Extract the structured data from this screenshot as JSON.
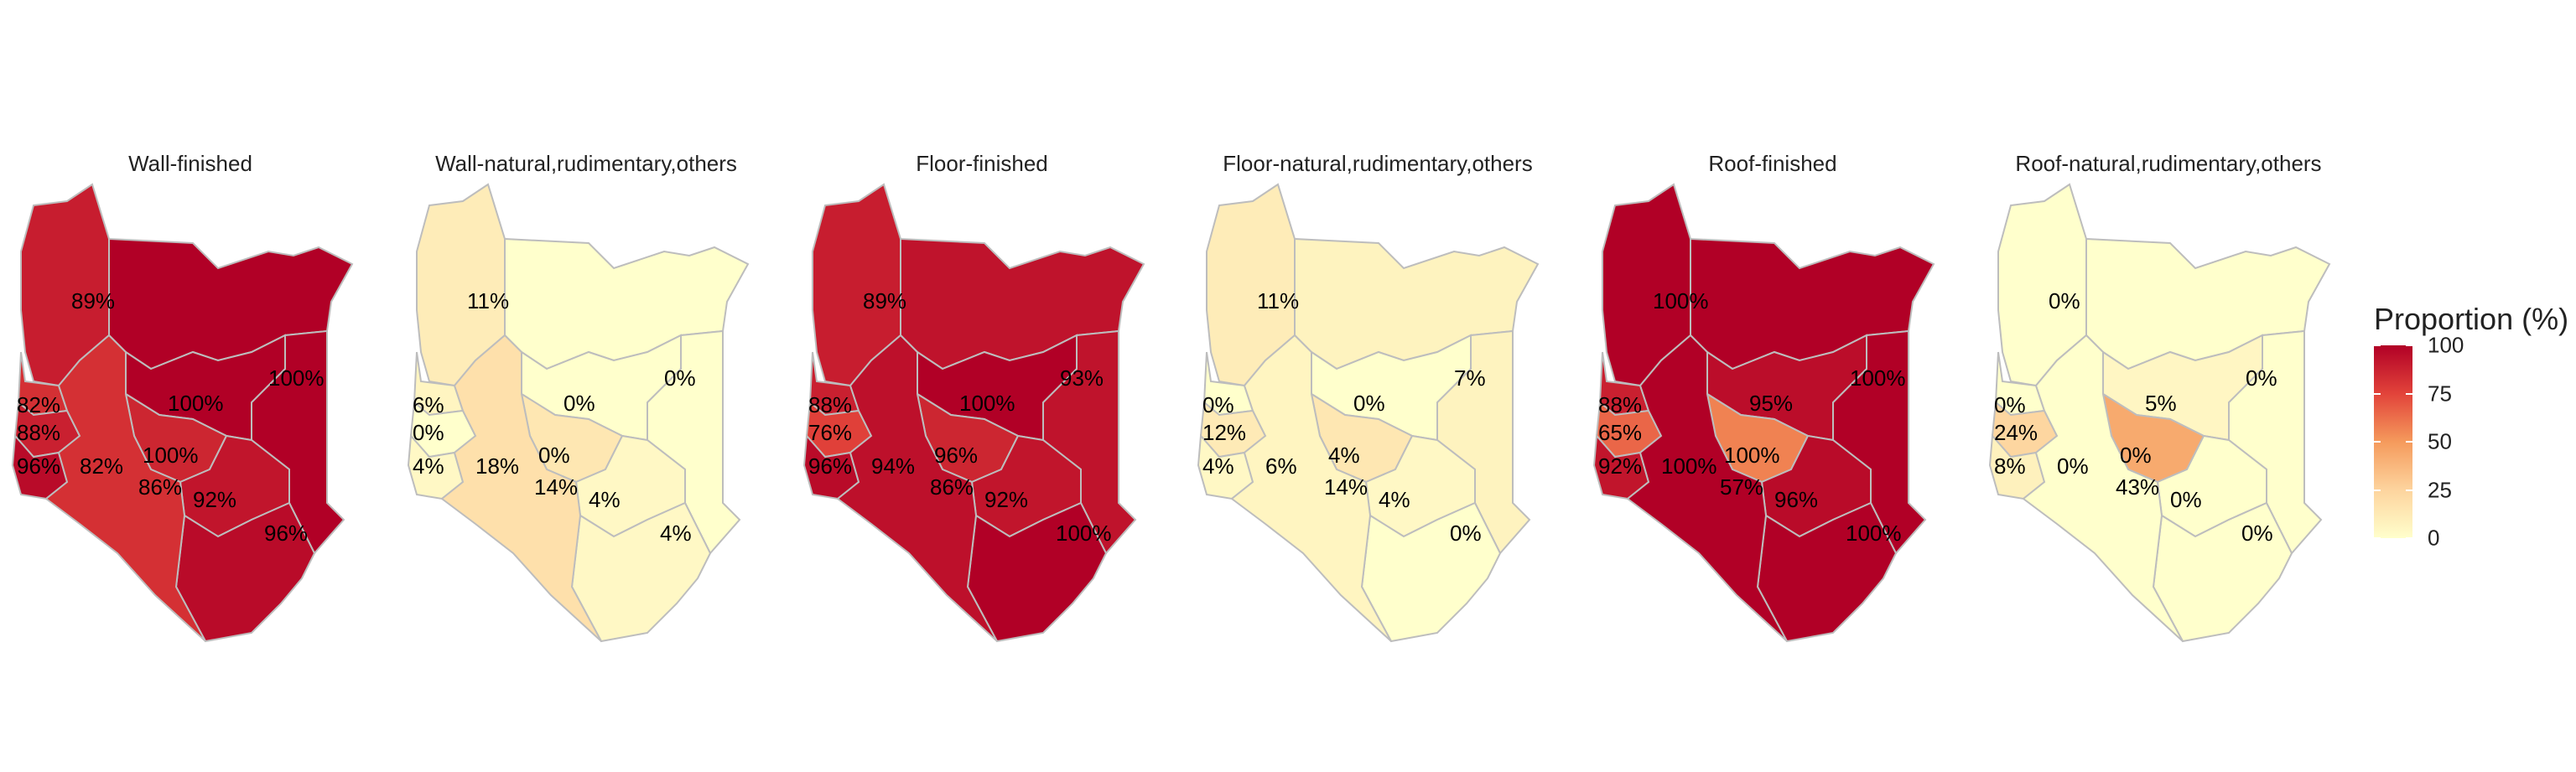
{
  "legend": {
    "title": "Proportion (%)",
    "ticks": [
      "100",
      "75",
      "50",
      "25",
      "0"
    ],
    "tick_values": [
      100,
      75,
      50,
      25,
      0
    ],
    "range": [
      0,
      100
    ],
    "colors": [
      "#ffffcc",
      "#fdd49e",
      "#f59a5c",
      "#e2433a",
      "#b10026"
    ]
  },
  "panels": [
    {
      "title": "Wall-finished",
      "regions": {
        "north_west": 89,
        "north_east": 100,
        "east": 100,
        "central_north": 100,
        "central": 86,
        "south_central": 92,
        "coast": 96,
        "lake_north": 82,
        "lake_mid": 88,
        "lake_south": 96,
        "rift_south": 82
      },
      "labels": [
        {
          "text": "89%",
          "pos": "north_west"
        },
        {
          "text": "100%",
          "pos": "east"
        },
        {
          "text": "82%",
          "pos": "lake_north"
        },
        {
          "text": "100%",
          "pos": "central_north"
        },
        {
          "text": "88%",
          "pos": "lake_mid"
        },
        {
          "text": "96%",
          "pos": "lake_south"
        },
        {
          "text": "82%",
          "pos": "rift_south"
        },
        {
          "text": "100%",
          "pos": "nairobi"
        },
        {
          "text": "86%",
          "pos": "central"
        },
        {
          "text": "92%",
          "pos": "south_central"
        },
        {
          "text": "96%",
          "pos": "coast"
        }
      ]
    },
    {
      "title": "Wall-natural,rudimentary,others",
      "regions": {
        "north_west": 11,
        "north_east": 0,
        "east": 0,
        "central_north": 0,
        "central": 14,
        "south_central": 4,
        "coast": 4,
        "lake_north": 6,
        "lake_mid": 0,
        "lake_south": 4,
        "rift_south": 18
      },
      "labels": [
        {
          "text": "11%",
          "pos": "north_west"
        },
        {
          "text": "0%",
          "pos": "east"
        },
        {
          "text": "6%",
          "pos": "lake_north"
        },
        {
          "text": "0%",
          "pos": "central_north"
        },
        {
          "text": "0%",
          "pos": "lake_mid"
        },
        {
          "text": "4%",
          "pos": "lake_south"
        },
        {
          "text": "18%",
          "pos": "rift_south"
        },
        {
          "text": "0%",
          "pos": "nairobi"
        },
        {
          "text": "14%",
          "pos": "central"
        },
        {
          "text": "4%",
          "pos": "south_central"
        },
        {
          "text": "4%",
          "pos": "coast"
        }
      ]
    },
    {
      "title": "Floor-finished",
      "regions": {
        "north_west": 89,
        "north_east": 93,
        "east": 93,
        "central_north": 100,
        "central": 86,
        "south_central": 92,
        "coast": 100,
        "lake_north": 88,
        "lake_mid": 76,
        "lake_south": 96,
        "rift_south": 94
      },
      "labels": [
        {
          "text": "89%",
          "pos": "north_west"
        },
        {
          "text": "93%",
          "pos": "east"
        },
        {
          "text": "88%",
          "pos": "lake_north"
        },
        {
          "text": "100%",
          "pos": "central_north"
        },
        {
          "text": "76%",
          "pos": "lake_mid"
        },
        {
          "text": "96%",
          "pos": "lake_south"
        },
        {
          "text": "94%",
          "pos": "rift_south"
        },
        {
          "text": "96%",
          "pos": "nairobi"
        },
        {
          "text": "86%",
          "pos": "central"
        },
        {
          "text": "92%",
          "pos": "south_central"
        },
        {
          "text": "100%",
          "pos": "coast"
        }
      ]
    },
    {
      "title": "Floor-natural,rudimentary,others",
      "regions": {
        "north_west": 11,
        "north_east": 7,
        "east": 7,
        "central_north": 0,
        "central": 14,
        "south_central": 4,
        "coast": 0,
        "lake_north": 0,
        "lake_mid": 12,
        "lake_south": 4,
        "rift_south": 6
      },
      "labels": [
        {
          "text": "11%",
          "pos": "north_west"
        },
        {
          "text": "7%",
          "pos": "east"
        },
        {
          "text": "0%",
          "pos": "lake_north"
        },
        {
          "text": "0%",
          "pos": "central_north"
        },
        {
          "text": "12%",
          "pos": "lake_mid"
        },
        {
          "text": "4%",
          "pos": "lake_south"
        },
        {
          "text": "6%",
          "pos": "rift_south"
        },
        {
          "text": "4%",
          "pos": "nairobi"
        },
        {
          "text": "14%",
          "pos": "central"
        },
        {
          "text": "4%",
          "pos": "south_central"
        },
        {
          "text": "0%",
          "pos": "coast"
        }
      ]
    },
    {
      "title": "Roof-finished",
      "regions": {
        "north_west": 100,
        "north_east": 100,
        "east": 100,
        "central_north": 95,
        "central": 57,
        "south_central": 96,
        "coast": 100,
        "lake_north": 88,
        "lake_mid": 65,
        "lake_south": 92,
        "rift_south": 100
      },
      "labels": [
        {
          "text": "100%",
          "pos": "north_west"
        },
        {
          "text": "100%",
          "pos": "east"
        },
        {
          "text": "88%",
          "pos": "lake_north"
        },
        {
          "text": "95%",
          "pos": "central_north"
        },
        {
          "text": "65%",
          "pos": "lake_mid"
        },
        {
          "text": "92%",
          "pos": "lake_south"
        },
        {
          "text": "100%",
          "pos": "rift_south"
        },
        {
          "text": "100%",
          "pos": "nairobi"
        },
        {
          "text": "57%",
          "pos": "central"
        },
        {
          "text": "96%",
          "pos": "south_central"
        },
        {
          "text": "100%",
          "pos": "coast"
        }
      ]
    },
    {
      "title": "Roof-natural,rudimentary,others",
      "regions": {
        "north_west": 0,
        "north_east": 0,
        "east": 0,
        "central_north": 5,
        "central": 43,
        "south_central": 0,
        "coast": 0,
        "lake_north": 0,
        "lake_mid": 24,
        "lake_south": 8,
        "rift_south": 0
      },
      "labels": [
        {
          "text": "0%",
          "pos": "north_west"
        },
        {
          "text": "0%",
          "pos": "east"
        },
        {
          "text": "0%",
          "pos": "lake_north"
        },
        {
          "text": "5%",
          "pos": "central_north"
        },
        {
          "text": "24%",
          "pos": "lake_mid"
        },
        {
          "text": "8%",
          "pos": "lake_south"
        },
        {
          "text": "0%",
          "pos": "rift_south"
        },
        {
          "text": "0%",
          "pos": "nairobi"
        },
        {
          "text": "43%",
          "pos": "central"
        },
        {
          "text": "0%",
          "pos": "south_central"
        },
        {
          "text": "0%",
          "pos": "coast"
        }
      ]
    }
  ]
}
